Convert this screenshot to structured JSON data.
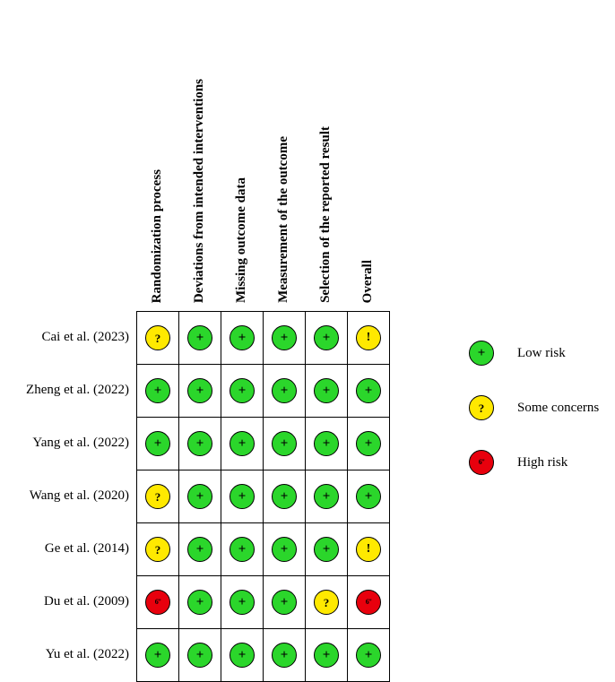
{
  "chart_data": {
    "type": "heatmap",
    "title": "",
    "columns": [
      "Randomization process",
      "Deviations from intended interventions",
      "Missing outcome data",
      "Measurement of the outcome",
      "Selection of the reported result",
      "Overall"
    ],
    "rows": [
      {
        "study": "Cai et al. (2023)",
        "cells": [
          "some-concerns",
          "low-risk",
          "low-risk",
          "low-risk",
          "low-risk",
          "some-concerns-overall"
        ]
      },
      {
        "study": "Zheng et al. (2022)",
        "cells": [
          "low-risk",
          "low-risk",
          "low-risk",
          "low-risk",
          "low-risk",
          "low-risk"
        ]
      },
      {
        "study": "Yang et al. (2022)",
        "cells": [
          "low-risk",
          "low-risk",
          "low-risk",
          "low-risk",
          "low-risk",
          "low-risk"
        ]
      },
      {
        "study": "Wang et al. (2020)",
        "cells": [
          "some-concerns",
          "low-risk",
          "low-risk",
          "low-risk",
          "low-risk",
          "low-risk"
        ]
      },
      {
        "study": "Ge et al. (2014)",
        "cells": [
          "some-concerns",
          "low-risk",
          "low-risk",
          "low-risk",
          "low-risk",
          "some-concerns-overall"
        ]
      },
      {
        "study": "Du et al. (2009)",
        "cells": [
          "high-risk",
          "low-risk",
          "low-risk",
          "low-risk",
          "some-concerns",
          "high-risk"
        ]
      },
      {
        "study": "Yu et al. (2022)",
        "cells": [
          "low-risk",
          "low-risk",
          "low-risk",
          "low-risk",
          "low-risk",
          "low-risk"
        ]
      }
    ],
    "cell_types": {
      "low-risk": {
        "symbol": "+",
        "color": "#2BD62B",
        "judgement": "Low risk"
      },
      "some-concerns": {
        "symbol": "?",
        "color": "#FFE900",
        "judgement": "Some concerns"
      },
      "some-concerns-overall": {
        "symbol": "!",
        "color": "#FFE900",
        "judgement": "Some concerns"
      },
      "high-risk": {
        "symbol": "6\"",
        "color": "#E8000D",
        "judgement": "High risk"
      }
    },
    "legend": [
      {
        "type": "low-risk",
        "label": "Low risk"
      },
      {
        "type": "some-concerns",
        "label": "Some concerns"
      },
      {
        "type": "high-risk",
        "label": "High risk"
      }
    ],
    "layout": {
      "grid_on": true,
      "legend_position": "right",
      "header_rotation_deg": 90
    }
  }
}
